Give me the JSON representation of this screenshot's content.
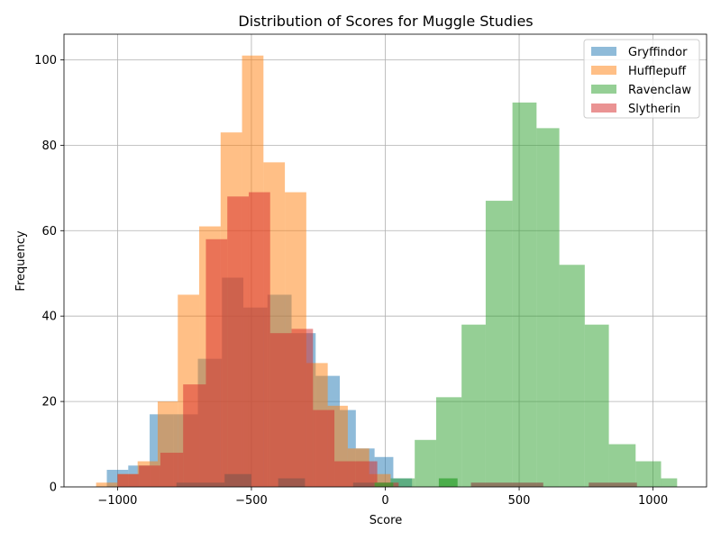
{
  "chart_data": {
    "type": "histogram",
    "title": "Distribution of Scores for Muggle Studies",
    "xlabel": "Score",
    "ylabel": "Frequency",
    "xlim": [
      -1200,
      1200
    ],
    "ylim": [
      0,
      106
    ],
    "xticks": [
      -1000,
      -500,
      0,
      500,
      1000
    ],
    "xtick_labels": [
      "−1000",
      "−500",
      "0",
      "500",
      "1000"
    ],
    "yticks": [
      0,
      20,
      40,
      60,
      80,
      100
    ],
    "ytick_labels": [
      "0",
      "20",
      "40",
      "60",
      "80",
      "100"
    ],
    "grid": true,
    "legend_position": "top-right",
    "series": [
      {
        "name": "Gryffindor",
        "color": "#1f77b4",
        "opacity": 0.5,
        "bins": [
          [
            -1040,
            -960,
            4
          ],
          [
            -960,
            -880,
            5
          ],
          [
            -880,
            -790,
            17
          ],
          [
            -790,
            -700,
            17
          ],
          [
            -700,
            -610,
            30
          ],
          [
            -610,
            -530,
            49
          ],
          [
            -530,
            -440,
            42
          ],
          [
            -440,
            -350,
            45
          ],
          [
            -350,
            -260,
            36
          ],
          [
            -260,
            -170,
            26
          ],
          [
            -170,
            -110,
            18
          ],
          [
            -110,
            -40,
            9
          ],
          [
            -40,
            30,
            7
          ],
          [
            30,
            100,
            2
          ]
        ]
      },
      {
        "name": "Hufflepuff",
        "color": "#ff7f0e",
        "opacity": 0.5,
        "bins": [
          [
            -1080,
            -1000,
            1
          ],
          [
            -1000,
            -925,
            3
          ],
          [
            -925,
            -850,
            6
          ],
          [
            -850,
            -775,
            20
          ],
          [
            -775,
            -695,
            45
          ],
          [
            -695,
            -615,
            61
          ],
          [
            -615,
            -535,
            83
          ],
          [
            -535,
            -455,
            101
          ],
          [
            -455,
            -375,
            76
          ],
          [
            -375,
            -295,
            69
          ],
          [
            -295,
            -215,
            29
          ],
          [
            -215,
            -140,
            19
          ],
          [
            -140,
            -60,
            9
          ],
          [
            -60,
            20,
            3
          ]
        ]
      },
      {
        "name": "Ravenclaw",
        "color": "#2ca02c",
        "opacity": 0.5,
        "bins": [
          [
            20,
            110,
            2
          ],
          [
            110,
            190,
            11
          ],
          [
            190,
            285,
            21
          ],
          [
            285,
            375,
            38
          ],
          [
            375,
            475,
            67
          ],
          [
            475,
            565,
            90
          ],
          [
            565,
            650,
            84
          ],
          [
            650,
            745,
            52
          ],
          [
            745,
            835,
            38
          ],
          [
            835,
            935,
            10
          ],
          [
            935,
            1030,
            6
          ],
          [
            1030,
            1090,
            2
          ]
        ]
      },
      {
        "name": "Slytherin",
        "color": "#d62728",
        "opacity": 0.5,
        "bins": [
          [
            -1000,
            -920,
            3
          ],
          [
            -920,
            -840,
            5
          ],
          [
            -840,
            -755,
            8
          ],
          [
            -755,
            -670,
            24
          ],
          [
            -670,
            -590,
            58
          ],
          [
            -590,
            -510,
            68
          ],
          [
            -510,
            -430,
            69
          ],
          [
            -430,
            -350,
            36
          ],
          [
            -350,
            -270,
            37
          ],
          [
            -270,
            -190,
            18
          ],
          [
            -190,
            -110,
            6
          ],
          [
            -110,
            -30,
            6
          ],
          [
            -30,
            50,
            1
          ]
        ]
      }
    ],
    "extra_bars": [
      {
        "color": "#8c564b",
        "opacity": 0.7,
        "bins": [
          [
            -780,
            -600,
            1
          ],
          [
            -600,
            -500,
            3
          ],
          [
            -400,
            -300,
            2
          ],
          [
            -120,
            -40,
            1
          ],
          [
            320,
            590,
            1
          ],
          [
            760,
            940,
            1
          ]
        ]
      },
      {
        "color": "#2ca02c",
        "opacity": 0.7,
        "bins": [
          [
            -40,
            30,
            1
          ],
          [
            200,
            270,
            2
          ]
        ]
      }
    ]
  }
}
